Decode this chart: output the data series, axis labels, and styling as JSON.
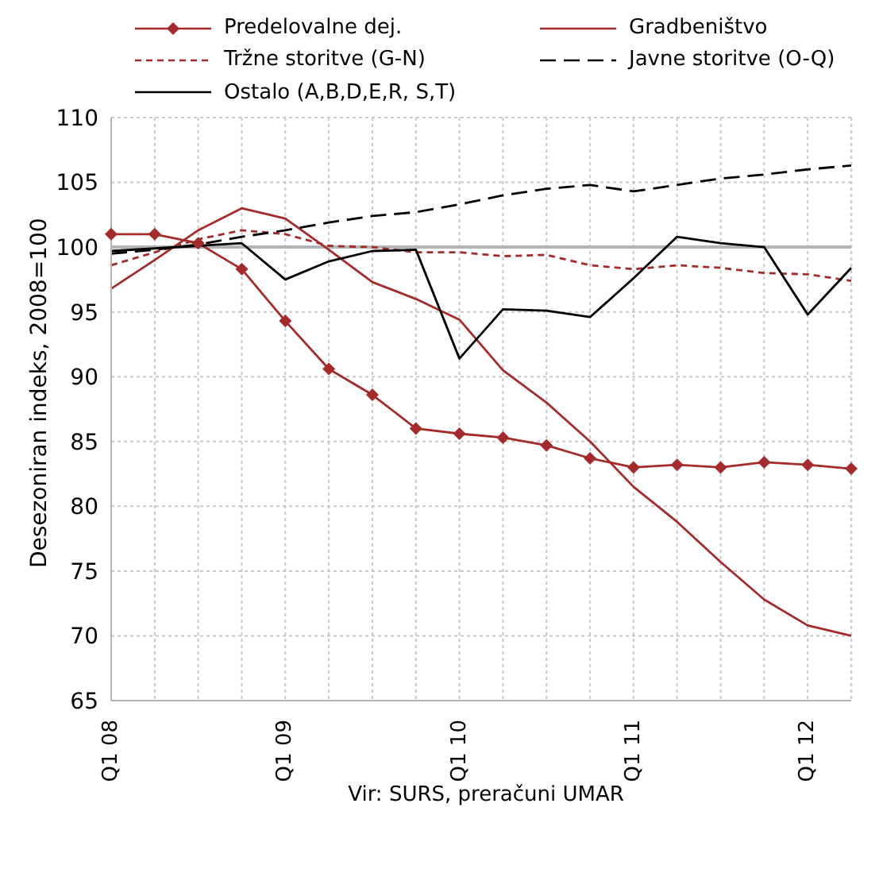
{
  "chart_data": {
    "type": "line",
    "ylabel": "Desezoniran indeks, 2008=100",
    "annotations": [
      "Vir: SURS, preračuni UMAR"
    ],
    "categories": [
      "Q1 08",
      null,
      null,
      null,
      "Q1 09",
      null,
      null,
      null,
      "Q1 10",
      null,
      null,
      null,
      "Q1 11",
      null,
      null,
      null,
      "Q1 12",
      null
    ],
    "series": [
      {
        "name": "Predelovalne dej.",
        "color": "#a52a2a",
        "marker": "diamond",
        "line_style": "solid",
        "values": [
          101,
          101,
          100.3,
          98.3,
          94.3,
          90.6,
          88.6,
          86,
          85.6,
          85.3,
          84.7,
          83.7,
          83,
          83.2,
          83,
          83.4,
          83.2,
          82.9
        ]
      },
      {
        "name": "Gradbeništvo",
        "color": "#a52a2a",
        "marker": "none",
        "line_style": "solid",
        "values": [
          96.8,
          99,
          101.3,
          103,
          102.2,
          99.8,
          97.3,
          96,
          94.4,
          90.5,
          88,
          85,
          81.5,
          78.8,
          75.7,
          72.8,
          70.8,
          70
        ]
      },
      {
        "name": "Tržne storitve (G-N)",
        "color": "#a52a2a",
        "marker": "none",
        "line_style": "dashed",
        "values": [
          98.6,
          99.6,
          100.6,
          101.3,
          101,
          100.1,
          100,
          99.6,
          99.6,
          99.3,
          99.4,
          98.6,
          98.3,
          98.6,
          98.4,
          98,
          97.9,
          97.4
        ]
      },
      {
        "name": "Javne storitve (O-Q)",
        "color": "#000000",
        "marker": "none",
        "line_style": "longdash",
        "values": [
          99.5,
          99.8,
          100.2,
          100.8,
          101.3,
          101.9,
          102.4,
          102.7,
          103.3,
          104,
          104.5,
          104.8,
          104.3,
          104.8,
          105.3,
          105.6,
          106,
          106.3
        ]
      },
      {
        "name": "Ostalo (A,B,D,E,R, S,T)",
        "color": "#000000",
        "marker": "none",
        "line_style": "solid",
        "values": [
          99.7,
          99.9,
          100.1,
          100.3,
          97.5,
          98.9,
          99.7,
          99.8,
          91.4,
          95.2,
          95.1,
          94.6,
          97.6,
          100.8,
          100.3,
          100,
          94.8,
          98.4
        ]
      }
    ],
    "ylim": [
      65,
      110
    ],
    "yticks": [
      65,
      70,
      75,
      80,
      85,
      90,
      95,
      100,
      105,
      110
    ],
    "grid": true,
    "legend": "top",
    "ref_lines": [
      {
        "axis": "y",
        "value": 100,
        "color": "#b3b3b3"
      }
    ]
  }
}
